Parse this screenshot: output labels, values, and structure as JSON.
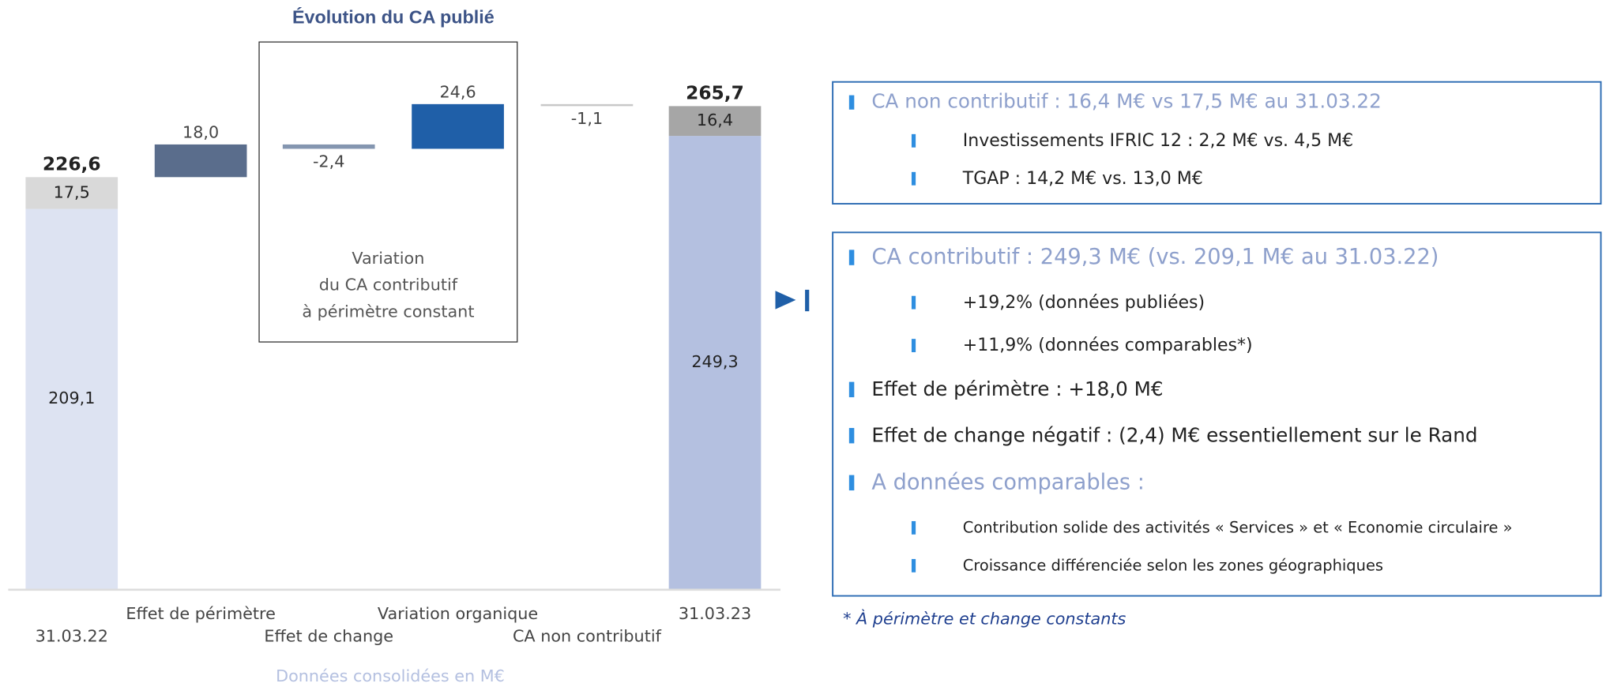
{
  "chart_data": {
    "type": "waterfall",
    "title": "Évolution du CA publié",
    "bars": [
      {
        "category": "31.03.22",
        "value": 226.6,
        "value_label": "226,6",
        "parts": [
          {
            "value": 209.1,
            "value_label": "209,1",
            "color": "#dde3f2"
          },
          {
            "value": 17.5,
            "value_label": "17,5",
            "color": "#d9d9d9"
          }
        ]
      },
      {
        "category": "Effet de périmètre",
        "value": 18.0,
        "value_label": "18,0",
        "color": "#5a6d8c"
      },
      {
        "category": "Effet de change",
        "value": -2.4,
        "value_label": "-2,4",
        "color": "#8496b0"
      },
      {
        "category": "Variation organique",
        "value": 24.6,
        "value_label": "24,6",
        "color": "#1f5fa8"
      },
      {
        "category": "CA non contributif",
        "value": -1.1,
        "value_label": "-1,1",
        "color": "#c8c8c8"
      },
      {
        "category": "31.03.23",
        "value": 265.7,
        "value_label": "265,7",
        "parts": [
          {
            "value": 249.3,
            "value_label": "249,3",
            "color": "#b4c0e0"
          },
          {
            "value": 16.4,
            "value_label": "16,4",
            "color": "#a6a6a6"
          }
        ]
      }
    ],
    "annotation": [
      "Variation",
      "du CA contributif",
      "à périmètre constant"
    ],
    "x_label": "Données consolidées en M€"
  },
  "notes": [
    {
      "items": [
        {
          "text": "CA non contributif : 16,4 M€ vs 17,5 M€ au 31.03.22",
          "sub": [
            "Investissements IFRIC 12 : 2,2 M€ vs. 4,5 M€",
            "TGAP : 14,2 M€ vs. 13,0 M€"
          ]
        }
      ]
    },
    {
      "items": [
        {
          "text": "CA contributif : 249,3 M€ (vs. 209,1 M€ au 31.03.22)",
          "sub": [
            "+19,2% (données publiées)",
            "+11,9% (données comparables*)"
          ]
        },
        {
          "text": "Effet de périmètre : +18,0 M€"
        },
        {
          "text": "Effet de change négatif : (2,4) M€ essentiellement sur le Rand"
        },
        {
          "text": "A données comparables :",
          "sub": [
            "Contribution solide des activités « Services » et « Economie circulaire »",
            "Croissance différenciée selon les zones géographiques"
          ]
        }
      ]
    }
  ],
  "footnote": "* À périmètre et change constants"
}
